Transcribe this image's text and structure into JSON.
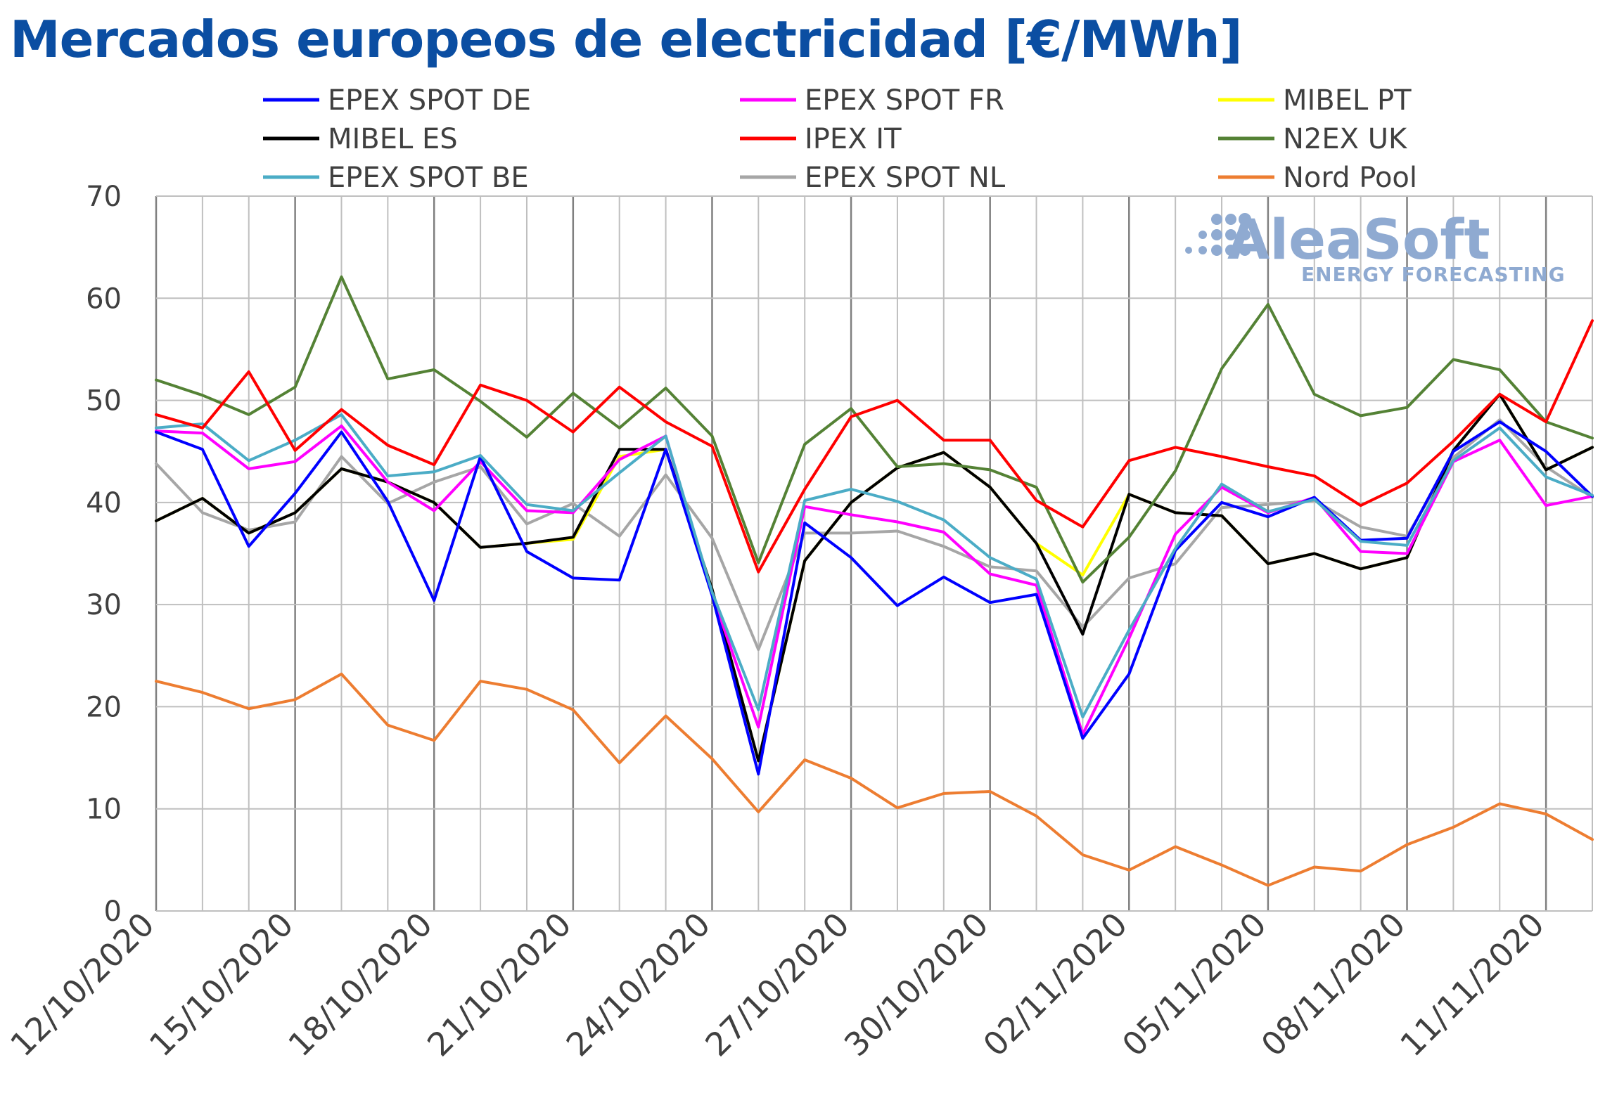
{
  "chart_data": {
    "type": "line",
    "title": "Mercados europeos de electricidad [€/MWh]",
    "xlabel": "",
    "ylabel": "",
    "ylim": [
      0,
      70
    ],
    "yticks": [
      0,
      10,
      20,
      30,
      40,
      50,
      60,
      70
    ],
    "grid": true,
    "legend": "top",
    "x": [
      "12/10/2020",
      "13/10/2020",
      "14/10/2020",
      "15/10/2020",
      "16/10/2020",
      "17/10/2020",
      "18/10/2020",
      "19/10/2020",
      "20/10/2020",
      "21/10/2020",
      "22/10/2020",
      "23/10/2020",
      "24/10/2020",
      "25/10/2020",
      "26/10/2020",
      "27/10/2020",
      "28/10/2020",
      "29/10/2020",
      "30/10/2020",
      "31/10/2020",
      "01/11/2020",
      "02/11/2020",
      "03/11/2020",
      "04/11/2020",
      "05/11/2020",
      "06/11/2020",
      "07/11/2020",
      "08/11/2020",
      "09/11/2020",
      "10/11/2020",
      "11/11/2020",
      "12/11/2020"
    ],
    "xtick_labels": [
      "12/10/2020",
      "15/10/2020",
      "18/10/2020",
      "21/10/2020",
      "24/10/2020",
      "27/10/2020",
      "30/10/2020",
      "02/11/2020",
      "05/11/2020",
      "08/11/2020",
      "11/11/2020"
    ],
    "series": [
      {
        "name": "Nord Pool",
        "color": "#ed7d31",
        "values": [
          22.5,
          21.4,
          19.8,
          20.7,
          23.2,
          18.2,
          16.7,
          22.5,
          21.7,
          19.7,
          14.5,
          19.1,
          14.9,
          9.7,
          14.8,
          13.0,
          10.1,
          11.5,
          11.7,
          9.3,
          5.5,
          4.0,
          6.3,
          4.5,
          2.5,
          4.3,
          3.9,
          6.5,
          8.2,
          10.5,
          9.5,
          7.0
        ]
      },
      {
        "name": "EPEX SPOT NL",
        "color": "#a6a6a6",
        "values": [
          43.8,
          39.0,
          37.3,
          38.1,
          44.5,
          39.9,
          42.0,
          43.5,
          37.9,
          39.9,
          36.7,
          42.7,
          36.5,
          25.6,
          37.0,
          37.0,
          37.2,
          35.7,
          33.7,
          33.3,
          27.8,
          32.6,
          34.0,
          39.5,
          39.8,
          40.2,
          37.6,
          36.7,
          44.4,
          48.1,
          43.5,
          40.5
        ]
      },
      {
        "name": "MIBEL PT",
        "color": "#ffff00",
        "values": [
          38.2,
          40.4,
          37.0,
          39.0,
          43.3,
          42.0,
          40.0,
          35.6,
          36.0,
          36.4,
          44.5,
          45.2,
          31.5,
          14.7,
          34.3,
          40.0,
          43.4,
          44.9,
          41.5,
          36.0,
          32.9,
          40.8,
          39.0,
          38.7,
          34.0,
          35.0,
          33.5,
          34.6,
          45.1,
          50.6,
          43.2,
          45.4
        ]
      },
      {
        "name": "MIBEL ES",
        "color": "#000000",
        "values": [
          38.2,
          40.4,
          37.0,
          39.0,
          43.3,
          42.0,
          40.0,
          35.6,
          36.0,
          36.6,
          45.2,
          45.2,
          31.5,
          14.7,
          34.3,
          40.0,
          43.4,
          44.9,
          41.5,
          36.0,
          27.1,
          40.8,
          39.0,
          38.7,
          34.0,
          35.0,
          33.5,
          34.6,
          45.1,
          50.6,
          43.2,
          45.4
        ]
      },
      {
        "name": "EPEX SPOT FR",
        "color": "#ff00ff",
        "values": [
          47.0,
          46.8,
          43.3,
          44.0,
          47.5,
          42.0,
          39.2,
          44.0,
          39.2,
          39.0,
          44.2,
          46.5,
          31.0,
          18.0,
          39.6,
          38.8,
          38.1,
          37.1,
          33.0,
          31.9,
          17.3,
          26.7,
          36.9,
          41.5,
          39.0,
          40.5,
          35.2,
          35.0,
          44.0,
          46.1,
          39.7,
          40.6
        ]
      },
      {
        "name": "EPEX SPOT DE",
        "color": "#0000ff",
        "values": [
          46.9,
          45.2,
          35.7,
          40.9,
          46.9,
          40.1,
          30.4,
          44.5,
          35.2,
          32.6,
          32.4,
          45.2,
          30.9,
          13.4,
          38.0,
          34.6,
          29.9,
          32.7,
          30.2,
          31.0,
          16.9,
          23.2,
          35.3,
          40.0,
          38.6,
          40.5,
          36.3,
          36.5,
          45.0,
          47.9,
          45.0,
          40.6
        ]
      },
      {
        "name": "EPEX SPOT BE",
        "color": "#4bacc6",
        "values": [
          47.3,
          47.7,
          44.1,
          46.1,
          48.6,
          42.6,
          43.0,
          44.6,
          39.8,
          39.2,
          42.9,
          46.5,
          31.2,
          19.7,
          40.2,
          41.3,
          40.1,
          38.3,
          34.6,
          32.5,
          19.0,
          27.5,
          35.5,
          41.8,
          39.1,
          40.3,
          36.2,
          35.8,
          44.1,
          47.3,
          42.5,
          40.7
        ]
      },
      {
        "name": "N2EX UK",
        "color": "#548235",
        "values": [
          52.0,
          50.5,
          48.6,
          51.3,
          62.1,
          52.1,
          53.0,
          49.9,
          46.4,
          50.7,
          47.3,
          51.2,
          46.5,
          34.1,
          45.7,
          49.2,
          43.5,
          43.8,
          43.2,
          41.5,
          32.2,
          36.6,
          43.1,
          53.1,
          59.4,
          50.6,
          48.5,
          49.3,
          54.0,
          53.0,
          47.9,
          46.3
        ]
      },
      {
        "name": "IPEX IT",
        "color": "#ff0000",
        "values": [
          48.6,
          47.3,
          52.8,
          45.1,
          49.1,
          45.6,
          43.7,
          51.5,
          50.0,
          46.9,
          51.3,
          47.9,
          45.5,
          33.2,
          41.3,
          48.4,
          50.0,
          46.1,
          46.1,
          40.2,
          37.6,
          44.1,
          45.4,
          44.5,
          43.5,
          42.6,
          39.7,
          41.9,
          46.0,
          50.6,
          47.9,
          57.8
        ]
      }
    ]
  },
  "legend_items": [
    {
      "name": "EPEX SPOT DE",
      "color": "#0000ff"
    },
    {
      "name": "EPEX SPOT FR",
      "color": "#ff00ff"
    },
    {
      "name": "MIBEL PT",
      "color": "#ffff00"
    },
    {
      "name": "MIBEL ES",
      "color": "#000000"
    },
    {
      "name": "IPEX IT",
      "color": "#ff0000"
    },
    {
      "name": "N2EX UK",
      "color": "#548235"
    },
    {
      "name": "EPEX SPOT BE",
      "color": "#4bacc6"
    },
    {
      "name": "EPEX SPOT NL",
      "color": "#a6a6a6"
    },
    {
      "name": "Nord Pool",
      "color": "#ed7d31"
    }
  ],
  "logo": {
    "name": "AleaSoft",
    "tagline": "ENERGY FORECASTING"
  },
  "colors": {
    "title": "#0b4ea2",
    "logo": "#8faad1",
    "grid": "#bfbfbf",
    "grid_major": "#808080"
  }
}
